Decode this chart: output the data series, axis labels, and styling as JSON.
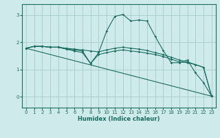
{
  "xlabel": "Humidex (Indice chaleur)",
  "bg_color": "#ceeaea",
  "grid_color": "#aacfcf",
  "line_color": "#1a6b60",
  "xlim": [
    -0.5,
    23.5
  ],
  "ylim": [
    -0.4,
    3.4
  ],
  "yticks": [
    0,
    1,
    2,
    3
  ],
  "xticks": [
    0,
    1,
    2,
    3,
    4,
    5,
    6,
    7,
    8,
    9,
    10,
    11,
    12,
    13,
    14,
    15,
    16,
    17,
    18,
    19,
    20,
    21,
    22,
    23
  ],
  "lines": [
    {
      "x": [
        0,
        1,
        2,
        3,
        4,
        5,
        6,
        7,
        8,
        9,
        10,
        11,
        12,
        13,
        14,
        15,
        16,
        17,
        18,
        19,
        20,
        21,
        22,
        23
      ],
      "y": [
        1.78,
        1.85,
        1.85,
        1.82,
        1.82,
        1.75,
        1.72,
        1.68,
        1.22,
        1.62,
        2.42,
        2.95,
        3.02,
        2.78,
        2.82,
        2.78,
        2.22,
        1.7,
        1.25,
        1.25,
        1.35,
        0.88,
        0.52,
        0.02
      ]
    },
    {
      "x": [
        0,
        1,
        2,
        3,
        4,
        5,
        6,
        7,
        8,
        9,
        10,
        11,
        12,
        13,
        14,
        15,
        16,
        17,
        18,
        19,
        20,
        21,
        22,
        23
      ],
      "y": [
        1.78,
        1.85,
        1.85,
        1.82,
        1.82,
        1.75,
        1.68,
        1.62,
        1.22,
        1.55,
        1.62,
        1.68,
        1.72,
        1.68,
        1.65,
        1.6,
        1.55,
        1.48,
        1.38,
        1.28,
        1.25,
        1.18,
        1.08,
        0.02
      ]
    },
    {
      "x": [
        0,
        1,
        2,
        3,
        4,
        5,
        6,
        7,
        8,
        9,
        10,
        11,
        12,
        13,
        14,
        15,
        16,
        17,
        18,
        19,
        20,
        21,
        22,
        23
      ],
      "y": [
        1.78,
        1.85,
        1.85,
        1.82,
        1.82,
        1.78,
        1.75,
        1.72,
        1.68,
        1.65,
        1.72,
        1.78,
        1.82,
        1.78,
        1.75,
        1.7,
        1.62,
        1.55,
        1.45,
        1.35,
        1.28,
        1.18,
        1.08,
        0.02
      ]
    },
    {
      "x": [
        0,
        23
      ],
      "y": [
        1.78,
        0.02
      ]
    }
  ]
}
